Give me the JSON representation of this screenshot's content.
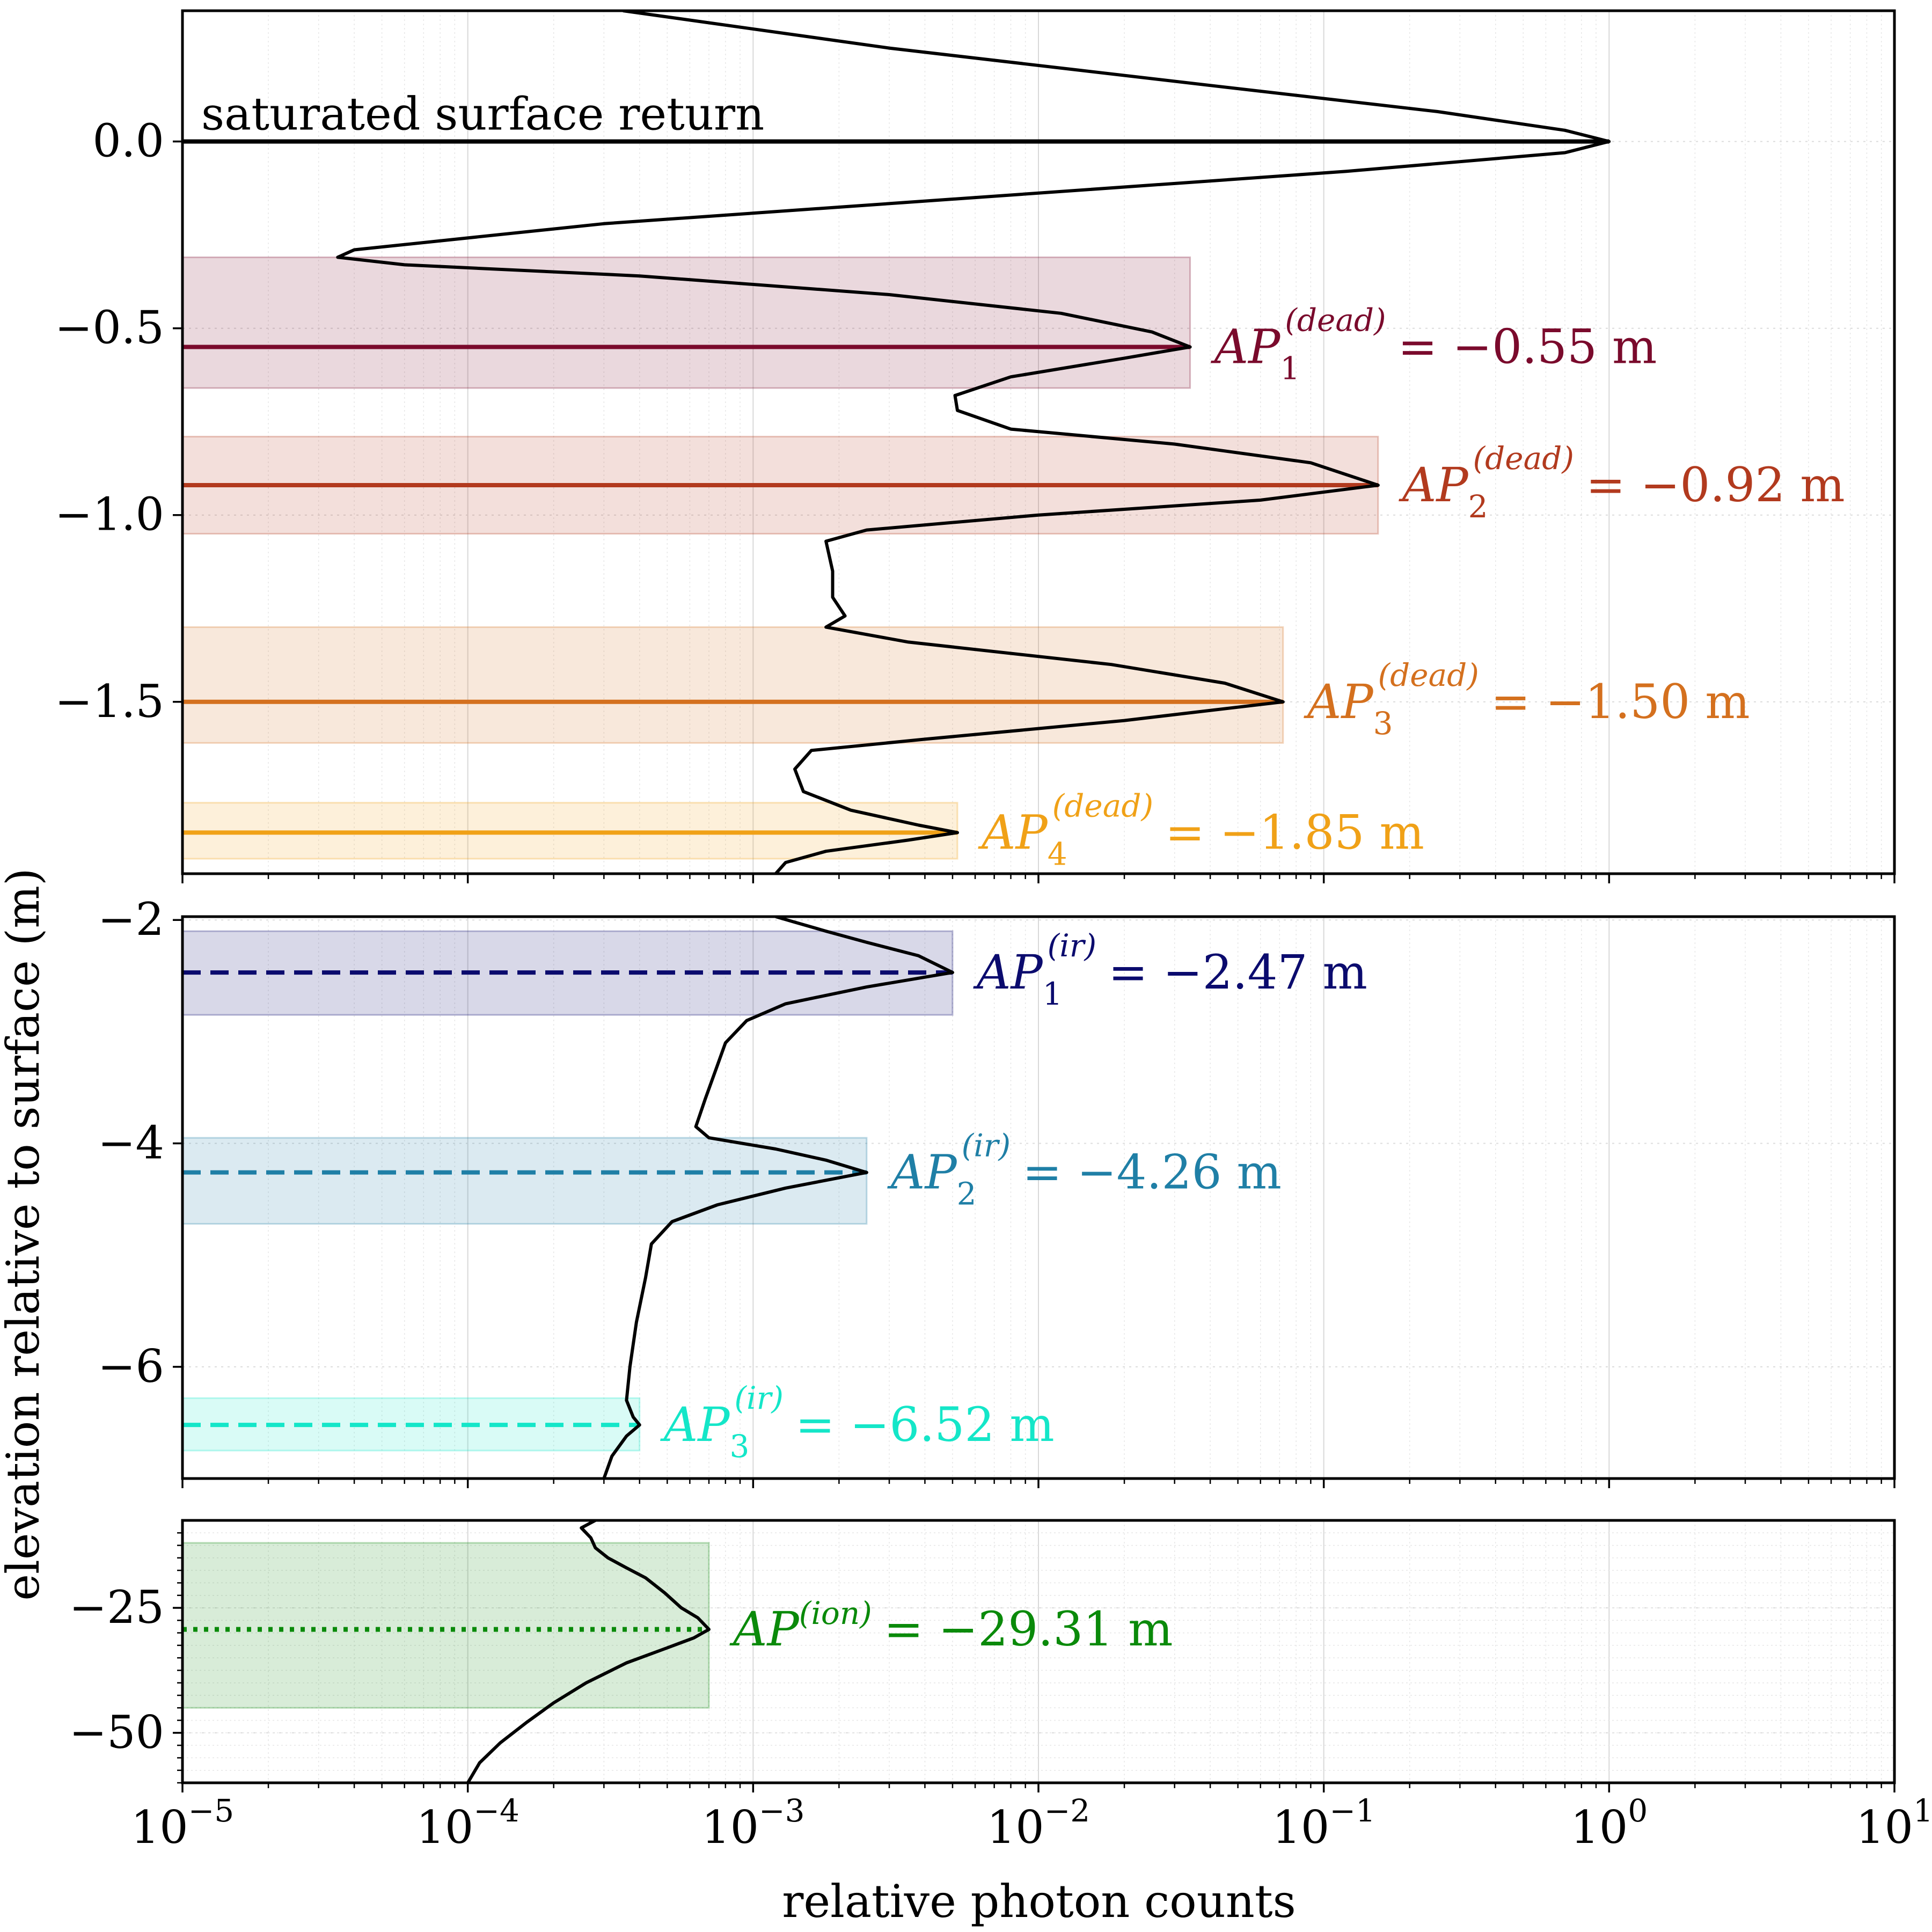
{
  "chart_data": {
    "type": "line",
    "x_scale": "log",
    "xlim": [
      1e-05,
      10
    ],
    "xlabel": "relative photon counts",
    "ylabel": "elevation relative to surface (m)",
    "x_ticks": [
      {
        "value": 1e-05,
        "base": "10",
        "exp": "−5"
      },
      {
        "value": 0.0001,
        "base": "10",
        "exp": "−4"
      },
      {
        "value": 0.001,
        "base": "10",
        "exp": "−3"
      },
      {
        "value": 0.01,
        "base": "10",
        "exp": "−2"
      },
      {
        "value": 0.1,
        "base": "10",
        "exp": "−1"
      },
      {
        "value": 1,
        "base": "10",
        "exp": "0"
      },
      {
        "value": 10,
        "base": "10",
        "exp": "1"
      }
    ],
    "panels": [
      {
        "id": "dead-time",
        "ylim": [
          -1.96,
          0.35
        ],
        "y_ticks": [
          {
            "value": 0,
            "label": "0.0"
          },
          {
            "value": -0.5,
            "label": "−0.5"
          },
          {
            "value": -1,
            "label": "−1.0"
          },
          {
            "value": -1.5,
            "label": "−1.5"
          }
        ],
        "surface_label": "saturated surface return",
        "profile": [
          [
            0.35,
            0.00035
          ],
          [
            0.25,
            0.003
          ],
          [
            0.15,
            0.04
          ],
          [
            0.08,
            0.25
          ],
          [
            0.03,
            0.7
          ],
          [
            0,
            1.0
          ],
          [
            -0.03,
            0.7
          ],
          [
            -0.08,
            0.12
          ],
          [
            -0.15,
            0.006
          ],
          [
            -0.22,
            0.0003
          ],
          [
            -0.29,
            4e-05
          ],
          [
            -0.31,
            3.5e-05
          ],
          [
            -0.33,
            6e-05
          ],
          [
            -0.36,
            0.0004
          ],
          [
            -0.41,
            0.003
          ],
          [
            -0.46,
            0.012
          ],
          [
            -0.51,
            0.025
          ],
          [
            -0.55,
            0.034
          ],
          [
            -0.58,
            0.02
          ],
          [
            -0.63,
            0.008
          ],
          [
            -0.68,
            0.0051
          ],
          [
            -0.72,
            0.0052
          ],
          [
            -0.77,
            0.008
          ],
          [
            -0.81,
            0.03
          ],
          [
            -0.86,
            0.09
          ],
          [
            -0.92,
            0.155
          ],
          [
            -0.96,
            0.06
          ],
          [
            -1.0,
            0.01
          ],
          [
            -1.04,
            0.0025
          ],
          [
            -1.07,
            0.0018
          ],
          [
            -1.15,
            0.0019
          ],
          [
            -1.22,
            0.0019
          ],
          [
            -1.27,
            0.0021
          ],
          [
            -1.3,
            0.0018
          ],
          [
            -1.34,
            0.0035
          ],
          [
            -1.4,
            0.018
          ],
          [
            -1.45,
            0.045
          ],
          [
            -1.5,
            0.072
          ],
          [
            -1.55,
            0.02
          ],
          [
            -1.6,
            0.004
          ],
          [
            -1.63,
            0.0016
          ],
          [
            -1.68,
            0.0014
          ],
          [
            -1.74,
            0.0015
          ],
          [
            -1.79,
            0.0022
          ],
          [
            -1.83,
            0.0038
          ],
          [
            -1.85,
            0.0052
          ],
          [
            -1.87,
            0.0035
          ],
          [
            -1.9,
            0.0018
          ],
          [
            -1.93,
            0.0013
          ],
          [
            -1.96,
            0.0012
          ]
        ],
        "annotations": [
          {
            "y": -0.55,
            "x": 0.034,
            "base": "AP",
            "sub": "1",
            "sup": "(dead)",
            "value": "= −0.55 m",
            "color": "#7a0a2c",
            "band": [
              -0.31,
              -0.66
            ],
            "style": "solid"
          },
          {
            "y": -0.92,
            "x": 0.155,
            "base": "AP",
            "sub": "2",
            "sup": "(dead)",
            "value": "= −0.92 m",
            "color": "#b23a1e",
            "band": [
              -0.79,
              -1.05
            ],
            "style": "solid"
          },
          {
            "y": -1.5,
            "x": 0.072,
            "base": "AP",
            "sub": "3",
            "sup": "(dead)",
            "value": "= −1.50 m",
            "color": "#d4701e",
            "band": [
              -1.3,
              -1.61
            ],
            "style": "solid"
          },
          {
            "y": -1.85,
            "x": 0.0052,
            "base": "AP",
            "sub": "4",
            "sup": "(dead)",
            "value": "= −1.85 m",
            "color": "#f0a117",
            "band": [
              -1.77,
              -1.92
            ],
            "style": "solid"
          }
        ]
      },
      {
        "id": "ir",
        "ylim": [
          -7.0,
          -1.97
        ],
        "y_ticks": [
          {
            "value": -2,
            "label": "−2"
          },
          {
            "value": -4,
            "label": "−4"
          },
          {
            "value": -6,
            "label": "−6"
          }
        ],
        "profile": [
          [
            -1.97,
            0.0012
          ],
          [
            -2.02,
            0.0014
          ],
          [
            -2.1,
            0.0018
          ],
          [
            -2.2,
            0.0025
          ],
          [
            -2.32,
            0.0038
          ],
          [
            -2.47,
            0.005
          ],
          [
            -2.6,
            0.0025
          ],
          [
            -2.75,
            0.0013
          ],
          [
            -2.9,
            0.00095
          ],
          [
            -3.1,
            0.0008
          ],
          [
            -3.3,
            0.00075
          ],
          [
            -3.6,
            0.00068
          ],
          [
            -3.85,
            0.00063
          ],
          [
            -3.95,
            0.0007
          ],
          [
            -4.05,
            0.0012
          ],
          [
            -4.15,
            0.0018
          ],
          [
            -4.26,
            0.0025
          ],
          [
            -4.4,
            0.0013
          ],
          [
            -4.55,
            0.00075
          ],
          [
            -4.7,
            0.00052
          ],
          [
            -4.9,
            0.00044
          ],
          [
            -5.2,
            0.00042
          ],
          [
            -5.6,
            0.00039
          ],
          [
            -6.0,
            0.00037
          ],
          [
            -6.3,
            0.00036
          ],
          [
            -6.45,
            0.00038
          ],
          [
            -6.52,
            0.0004
          ],
          [
            -6.62,
            0.00036
          ],
          [
            -6.8,
            0.00032
          ],
          [
            -7.0,
            0.0003
          ]
        ],
        "annotations": [
          {
            "y": -2.47,
            "x": 0.005,
            "base": "AP",
            "sub": "1",
            "sup": "(ir)",
            "value": "= −2.47 m",
            "color": "#0b0b6e",
            "band": [
              -2.1,
              -2.85
            ],
            "style": "dashed"
          },
          {
            "y": -4.26,
            "x": 0.0025,
            "base": "AP",
            "sub": "2",
            "sup": "(ir)",
            "value": "= −4.26 m",
            "color": "#1f7fa6",
            "band": [
              -3.95,
              -4.72
            ],
            "style": "dashed"
          },
          {
            "y": -6.52,
            "x": 0.0004,
            "base": "AP",
            "sub": "3",
            "sup": "(ir)",
            "value": "= −6.52 m",
            "color": "#14e6c8",
            "band": [
              -6.28,
              -6.75
            ],
            "style": "dashed"
          }
        ]
      },
      {
        "id": "ion",
        "ylim": [
          -60,
          -7.5
        ],
        "y_ticks": [
          {
            "value": -25,
            "label": "−25"
          },
          {
            "value": -50,
            "label": "−50"
          }
        ],
        "profile": [
          [
            -7.5,
            0.00028
          ],
          [
            -9,
            0.00025
          ],
          [
            -11,
            0.00027
          ],
          [
            -13,
            0.00028
          ],
          [
            -15,
            0.00031
          ],
          [
            -17,
            0.00036
          ],
          [
            -19,
            0.00042
          ],
          [
            -22,
            0.00049
          ],
          [
            -25,
            0.00056
          ],
          [
            -27,
            0.00064
          ],
          [
            -29.31,
            0.0007
          ],
          [
            -31,
            0.00062
          ],
          [
            -33,
            0.0005
          ],
          [
            -36,
            0.00036
          ],
          [
            -40,
            0.00026
          ],
          [
            -44,
            0.0002
          ],
          [
            -48,
            0.00016
          ],
          [
            -52,
            0.00013
          ],
          [
            -56,
            0.00011
          ],
          [
            -60,
            0.0001
          ]
        ],
        "annotations": [
          {
            "y": -29.31,
            "x": 0.0007,
            "base": "AP",
            "sub": "",
            "sup": "(ion)",
            "value": "= −29.31 m",
            "color": "#0a8a0a",
            "band": [
              -12,
              -45
            ],
            "style": "dotted"
          }
        ]
      }
    ]
  }
}
